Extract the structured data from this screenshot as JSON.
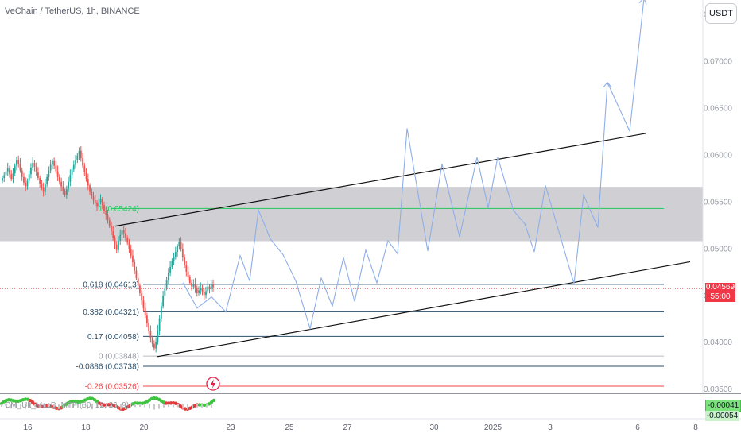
{
  "header": {
    "symbol_title": "VeChain / TetherUS, 1h, BINANCE",
    "currency_button": "USDT"
  },
  "price_axis": {
    "tick_labels": [
      "0.07500",
      "0.07000",
      "0.06500",
      "0.06000",
      "0.05500",
      "0.05000",
      "0.04500",
      "0.04000",
      "0.03500"
    ],
    "current_price": "0.04569",
    "countdown": "55:00"
  },
  "indicator": {
    "label": "CM_Ult_MacD_MTF (60, 12, 26, 9)",
    "value_primary": "-0.00041",
    "value_secondary": "-0.00054"
  },
  "colors": {
    "fib_line": "#2a4d69",
    "fib_green": "#22c55e",
    "fib_red": "#ef4444",
    "projection": "#8eaee8",
    "zone": "#c8c8cc",
    "up_candle": "#26a69a",
    "down_candle": "#ef5350",
    "price_badge": "#f23645",
    "osc_green": "#3fc43f",
    "osc_red": "#e23b3b"
  },
  "chart_data": {
    "type": "candlestick",
    "y_axis": {
      "min": 0.0345,
      "max": 0.0765,
      "unit": "USDT",
      "ticks": [
        0.075,
        0.07,
        0.065,
        0.06,
        0.055,
        0.05,
        0.045,
        0.04,
        0.035
      ]
    },
    "x_axis": {
      "tick_labels": [
        "16",
        "18",
        "20",
        "23",
        "25",
        "27",
        "30",
        "2025",
        "3",
        "6",
        "8"
      ]
    },
    "fib_levels": [
      {
        "label": "0.618 (0.04613)",
        "ratio": 0.618,
        "price": 0.04613,
        "color": "fib_line"
      },
      {
        "label": "0.382 (0.04321)",
        "ratio": 0.382,
        "price": 0.04321,
        "color": "fib_line"
      },
      {
        "label": "0.17 (0.04058)",
        "ratio": 0.17,
        "price": 0.04058,
        "color": "fib_line"
      },
      {
        "label": "0 (0.03848)",
        "ratio": 0,
        "price": 0.03848,
        "color": "gray"
      },
      {
        "label": "-0.0886 (0.03738)",
        "ratio": -0.0886,
        "price": 0.03738,
        "color": "fib_line"
      },
      {
        "label": "-0.26 (0.03526)",
        "ratio": -0.26,
        "price": 0.03526,
        "color": "fib_red"
      }
    ],
    "upper_fib": {
      "label": "1 (0.05424)",
      "price": 0.05424
    },
    "resistance_zone": {
      "top": 0.05655,
      "bottom": 0.05075
    },
    "current_price": 0.04569,
    "candles_close": [
      0.0575,
      0.0578,
      0.0582,
      0.0585,
      0.0579,
      0.0574,
      0.058,
      0.0588,
      0.0594,
      0.059,
      0.0583,
      0.0576,
      0.057,
      0.0566,
      0.0572,
      0.0579,
      0.0586,
      0.0591,
      0.0587,
      0.0581,
      0.0575,
      0.0569,
      0.0565,
      0.056,
      0.0568,
      0.0576,
      0.0583,
      0.0589,
      0.0593,
      0.0588,
      0.0582,
      0.0576,
      0.0571,
      0.0566,
      0.0561,
      0.0557,
      0.0563,
      0.0571,
      0.0578,
      0.0584,
      0.0589,
      0.0594,
      0.0599,
      0.0604,
      0.0596,
      0.0588,
      0.0581,
      0.0574,
      0.0567,
      0.056,
      0.0555,
      0.0551,
      0.0548,
      0.0545,
      0.0549,
      0.0552,
      0.0546,
      0.054,
      0.0535,
      0.053,
      0.0524,
      0.0518,
      0.0511,
      0.0504,
      0.0498,
      0.0508,
      0.0514,
      0.0519,
      0.0516,
      0.0511,
      0.0506,
      0.0499,
      0.0492,
      0.0485,
      0.0476,
      0.0468,
      0.046,
      0.0452,
      0.0444,
      0.0436,
      0.0428,
      0.042,
      0.0412,
      0.0404,
      0.0398,
      0.0393,
      0.04,
      0.0412,
      0.0425,
      0.0438,
      0.0449,
      0.0458,
      0.0466,
      0.0474,
      0.048,
      0.0486,
      0.0491,
      0.0496,
      0.0502,
      0.0507,
      0.0499,
      0.049,
      0.0482,
      0.0475,
      0.0469,
      0.0463,
      0.0459,
      0.0462,
      0.0457,
      0.0452,
      0.0455,
      0.0458,
      0.0453,
      0.045,
      0.0454,
      0.0459,
      0.0456,
      0.0461,
      0.0458
    ],
    "projection_path": [
      [
        230,
        0.0463
      ],
      [
        248,
        0.0436
      ],
      [
        266,
        0.0448
      ],
      [
        284,
        0.0432
      ],
      [
        302,
        0.0492
      ],
      [
        314,
        0.0465
      ],
      [
        325,
        0.0541
      ],
      [
        340,
        0.051
      ],
      [
        356,
        0.0493
      ],
      [
        372,
        0.0465
      ],
      [
        390,
        0.0414
      ],
      [
        404,
        0.0468
      ],
      [
        418,
        0.0438
      ],
      [
        432,
        0.049
      ],
      [
        446,
        0.0443
      ],
      [
        460,
        0.0498
      ],
      [
        474,
        0.0463
      ],
      [
        488,
        0.0508
      ],
      [
        500,
        0.0494
      ],
      [
        512,
        0.0628
      ],
      [
        538,
        0.0497
      ],
      [
        556,
        0.059
      ],
      [
        578,
        0.0512
      ],
      [
        600,
        0.0597
      ],
      [
        614,
        0.0543
      ],
      [
        626,
        0.0597
      ],
      [
        646,
        0.054
      ],
      [
        660,
        0.0526
      ],
      [
        672,
        0.0496
      ],
      [
        686,
        0.0567
      ],
      [
        722,
        0.0462
      ],
      [
        734,
        0.0557
      ],
      [
        752,
        0.0522
      ],
      [
        764,
        0.0677
      ],
      [
        792,
        0.0625
      ],
      [
        810,
        0.0767
      ]
    ],
    "trendlines": [
      {
        "name": "upper channel",
        "from": [
          145,
          0.05235
        ],
        "to": [
          812,
          0.06225
        ]
      },
      {
        "name": "lower channel",
        "from": [
          198,
          0.03842
        ],
        "to": [
          868,
          0.04855
        ]
      }
    ]
  }
}
